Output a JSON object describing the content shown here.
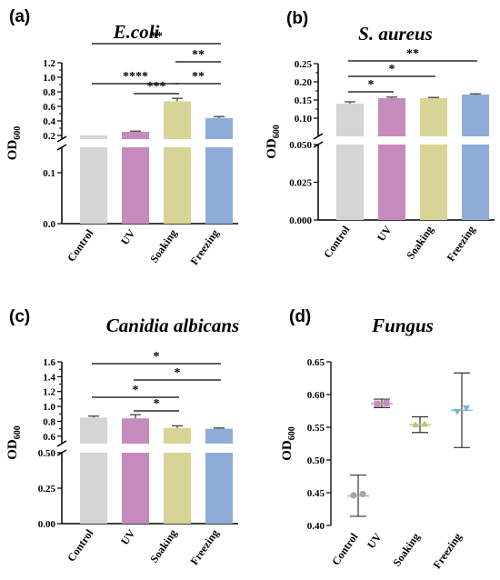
{
  "chart_data": [
    {
      "panel": "(a)",
      "title": "E.coli",
      "type": "bar",
      "ylabel": "OD",
      "ylabel_sub": "600",
      "categories": [
        "Control",
        "UV",
        "Soaking",
        "Freezing"
      ],
      "values": [
        0.2,
        0.25,
        0.67,
        0.44
      ],
      "errors": [
        0,
        0.01,
        0.04,
        0.02
      ],
      "colors": [
        "#d5d5d5",
        "#c68bbd",
        "#d8d496",
        "#8dadd6"
      ],
      "y_axis": {
        "type": "broken",
        "break_at": 0.15,
        "lower_range": [
          0,
          0.15
        ],
        "lower_ticks": [
          "0.0",
          "0.1"
        ],
        "upper_range": [
          0.15,
          1.2
        ],
        "upper_ticks": [
          "0.2",
          "0.4",
          "0.6",
          "0.8",
          "1.0",
          "1.2"
        ]
      },
      "significance": [
        {
          "from": "Control",
          "to": "Freezing",
          "label": "**"
        },
        {
          "from": "Soaking",
          "to": "Freezing",
          "label": "**"
        },
        {
          "from": "Control",
          "to": "Soaking",
          "label": "****"
        },
        {
          "from": "UV",
          "to": "Soaking",
          "label": "***"
        },
        {
          "from": "Soaking",
          "to": "Freezing",
          "label": "**"
        }
      ]
    },
    {
      "panel": "(b)",
      "title": "S. aureus",
      "type": "bar",
      "ylabel": "OD",
      "ylabel_sub": "600",
      "categories": [
        "Control",
        "UV",
        "Soaking",
        "Freezing"
      ],
      "values": [
        0.14,
        0.155,
        0.155,
        0.165
      ],
      "errors": [
        0.005,
        0.003,
        0.002,
        0.002
      ],
      "colors": [
        "#d5d5d5",
        "#c68bbd",
        "#d8d496",
        "#8dadd6"
      ],
      "y_axis": {
        "type": "broken",
        "break_at": 0.05,
        "lower_range": [
          0,
          0.05
        ],
        "lower_ticks": [
          "0.000",
          "0.025",
          "0.050"
        ],
        "upper_range": [
          0.05,
          0.25
        ],
        "upper_ticks": [
          "0.10",
          "0.15",
          "0.20",
          "0.25"
        ]
      },
      "significance": [
        {
          "from": "Control",
          "to": "Freezing",
          "label": "**"
        },
        {
          "from": "Control",
          "to": "Soaking",
          "label": "*"
        },
        {
          "from": "Control",
          "to": "UV",
          "label": "*"
        }
      ]
    },
    {
      "panel": "(c)",
      "title": "Canidia albicans",
      "type": "bar",
      "ylabel": "OD",
      "ylabel_sub": "600",
      "categories": [
        "Control",
        "UV",
        "Soaking",
        "Freezing"
      ],
      "values": [
        0.85,
        0.84,
        0.71,
        0.7
      ],
      "errors": [
        0.02,
        0.05,
        0.03,
        0.01
      ],
      "colors": [
        "#d5d5d5",
        "#c68bbd",
        "#d8d496",
        "#8dadd6"
      ],
      "y_axis": {
        "type": "broken",
        "break_at": 0.5,
        "lower_range": [
          0,
          0.5
        ],
        "lower_ticks": [
          "0.00",
          "0.25",
          "0.50"
        ],
        "upper_range": [
          0.5,
          1.6
        ],
        "upper_ticks": [
          "0.6",
          "0.8",
          "1.0",
          "1.2",
          "1.4",
          "1.6"
        ]
      },
      "significance": [
        {
          "from": "Control",
          "to": "Freezing",
          "label": "*"
        },
        {
          "from": "UV",
          "to": "Freezing",
          "label": "*"
        },
        {
          "from": "Control",
          "to": "Soaking",
          "label": "*"
        },
        {
          "from": "UV",
          "to": "Soaking",
          "label": "*"
        }
      ]
    },
    {
      "panel": "(d)",
      "title": "Fungus",
      "type": "scatter",
      "ylabel": "OD",
      "ylabel_sub": "600",
      "categories": [
        "Control",
        "UV",
        "Soaking",
        "Freezing"
      ],
      "means": [
        0.445,
        0.586,
        0.554,
        0.576
      ],
      "error_range": [
        [
          0.414,
          0.477
        ],
        [
          0.58,
          0.593
        ],
        [
          0.542,
          0.566
        ],
        [
          0.519,
          0.633
        ]
      ],
      "points": [
        [
          0.446,
          0.448
        ],
        [
          0.586,
          0.587
        ],
        [
          0.554,
          0.555
        ],
        [
          0.574,
          0.579
        ]
      ],
      "colors": [
        "#a6a6a6",
        "#c68bbd",
        "#b8c66e",
        "#7cb2dc"
      ],
      "ylim": [
        0.4,
        0.65
      ],
      "yticks": [
        "0.40",
        "0.45",
        "0.50",
        "0.55",
        "0.60",
        "0.65"
      ]
    }
  ]
}
